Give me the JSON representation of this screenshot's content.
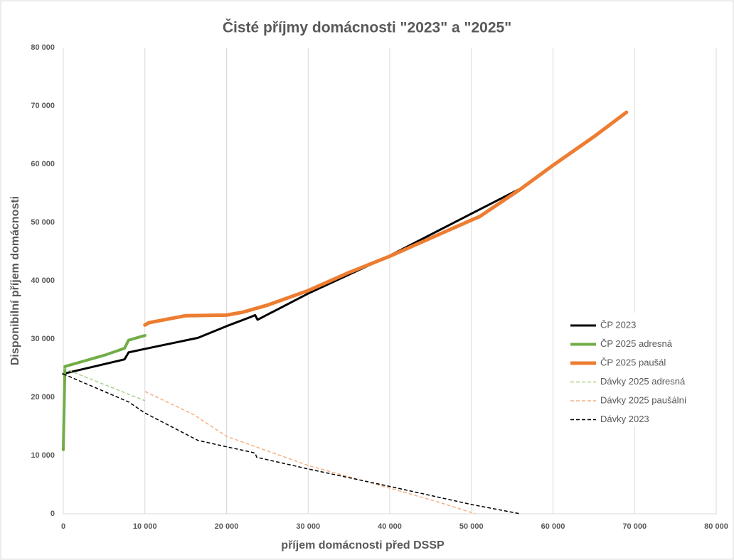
{
  "chart_data": {
    "type": "line",
    "title": "Čisté příjmy domácnosti \"2023\" a \"2025\"",
    "x_label": "příjem domácnosti před DSSP",
    "y_label": "Disponibilní příjem domácnosti",
    "xlim": [
      0,
      80000
    ],
    "ylim": [
      0,
      80000
    ],
    "xticks": [
      0,
      {
        "value": 10000,
        "label": "10 000"
      },
      {
        "value": 20000,
        "label": "20 000"
      },
      {
        "value": 30000,
        "label": "30 000"
      },
      {
        "value": 40000,
        "label": "40 000"
      },
      {
        "value": 50000,
        "label": "50 000"
      },
      {
        "value": 60000,
        "label": "60 000"
      },
      {
        "value": 70000,
        "label": "70 000"
      },
      {
        "value": 80000,
        "label": "80 000"
      }
    ],
    "yticks": [
      0,
      {
        "value": 10000,
        "label": "10 000"
      },
      {
        "value": 20000,
        "label": "20 000"
      },
      {
        "value": 30000,
        "label": "30 000"
      },
      {
        "value": 40000,
        "label": "40 000"
      },
      {
        "value": 50000,
        "label": "50 000"
      },
      {
        "value": 60000,
        "label": "60 000"
      },
      {
        "value": 70000,
        "label": "70 000"
      },
      {
        "value": 80000,
        "label": "80 000"
      }
    ],
    "grid": "x",
    "legend": "right",
    "series": [
      {
        "name": "ČP 2023",
        "color": "#000000",
        "width": 3,
        "dashed": false,
        "x": [
          0,
          500,
          7500,
          8000,
          10000,
          16500,
          20000,
          23000,
          23500,
          23800,
          30000,
          40000,
          50000,
          56000
        ],
        "values": [
          24000,
          24200,
          26500,
          27700,
          28300,
          30200,
          32200,
          33800,
          34100,
          33300,
          37800,
          44300,
          51500,
          55800
        ]
      },
      {
        "name": "ČP 2025 adresná",
        "color": "#70ad47",
        "width": 4,
        "dashed": false,
        "x": [
          0,
          200,
          1000,
          5000,
          7500,
          8000,
          10000
        ],
        "values": [
          11000,
          25300,
          25600,
          27200,
          28400,
          29800,
          30600
        ]
      },
      {
        "name": "ČP 2025 paušál",
        "color": "#ed7d31",
        "width": 5,
        "dashed": false,
        "x": [
          10000,
          10500,
          15000,
          20000,
          22000,
          25000,
          30000,
          35000,
          40000,
          45000,
          50000,
          51000,
          56000,
          60000,
          65000,
          69000
        ],
        "values": [
          32400,
          32800,
          34000,
          34100,
          34600,
          35800,
          38300,
          41400,
          44200,
          47300,
          50400,
          51000,
          55700,
          59800,
          64700,
          68900
        ]
      },
      {
        "name": "Dávky 2025 adresná",
        "color": "#a9d18e",
        "width": 1.5,
        "dashed": true,
        "x": [
          0,
          10000
        ],
        "values": [
          25000,
          19400
        ]
      },
      {
        "name": "Dávky 2025 paušální",
        "color": "#f4b183",
        "width": 1.5,
        "dashed": true,
        "x": [
          10000,
          16000,
          20000,
          25000,
          30000,
          40000,
          46000,
          50500
        ],
        "values": [
          21000,
          17000,
          13300,
          10800,
          8300,
          4400,
          2000,
          0
        ]
      },
      {
        "name": "Dávky 2023",
        "color": "#000000",
        "width": 1.5,
        "dashed": true,
        "x": [
          0,
          8000,
          10000,
          16500,
          20000,
          23000,
          23500,
          23700,
          30000,
          40000,
          50000,
          56000
        ],
        "values": [
          24000,
          19200,
          17300,
          12600,
          11500,
          10600,
          10400,
          9700,
          7700,
          4700,
          1600,
          0
        ]
      }
    ]
  }
}
